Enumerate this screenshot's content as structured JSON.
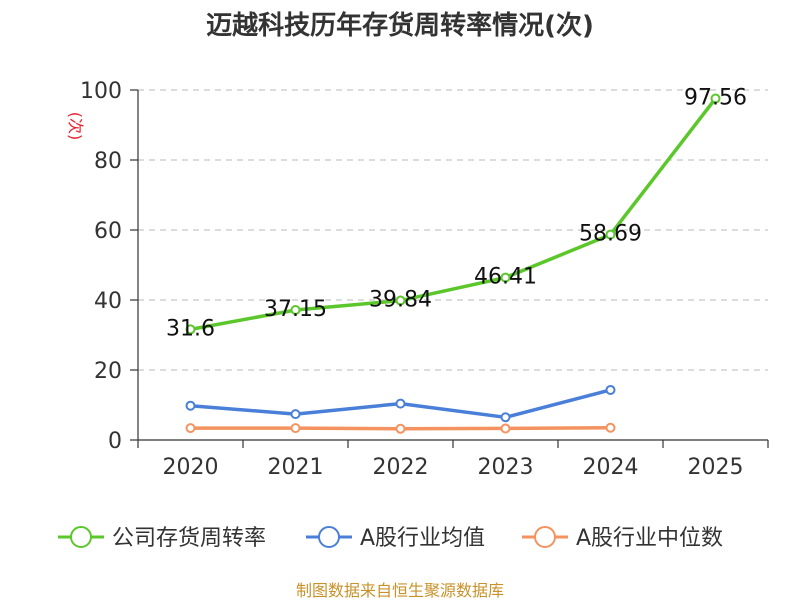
{
  "chart_data": {
    "type": "line",
    "title": "迈越科技历年存货周转率情况(次)",
    "ylabel": "(次)",
    "xlabel": "",
    "categories": [
      "2020",
      "2021",
      "2022",
      "2023",
      "2024",
      "2025"
    ],
    "ylim": [
      0,
      100
    ],
    "yticks": [
      0,
      20,
      40,
      60,
      80,
      100
    ],
    "grid": true,
    "legend_position": "bottom",
    "series": [
      {
        "name": "公司存货周转率",
        "color": "#5bc72a",
        "values": [
          31.6,
          37.15,
          39.84,
          46.41,
          58.69,
          97.56
        ],
        "labels": [
          "31.6",
          "37.15",
          "39.84",
          "46.41",
          "58.69",
          "97.56"
        ],
        "show_labels": true
      },
      {
        "name": "A股行业均值",
        "color": "#4a7fd9",
        "values": [
          9.8,
          7.4,
          10.4,
          6.5,
          14.3,
          null
        ],
        "show_labels": false
      },
      {
        "name": "A股行业中位数",
        "color": "#f4935f",
        "values": [
          3.4,
          3.4,
          3.2,
          3.3,
          3.5,
          null
        ],
        "show_labels": false
      }
    ],
    "source": "制图数据来自恒生聚源数据库"
  }
}
